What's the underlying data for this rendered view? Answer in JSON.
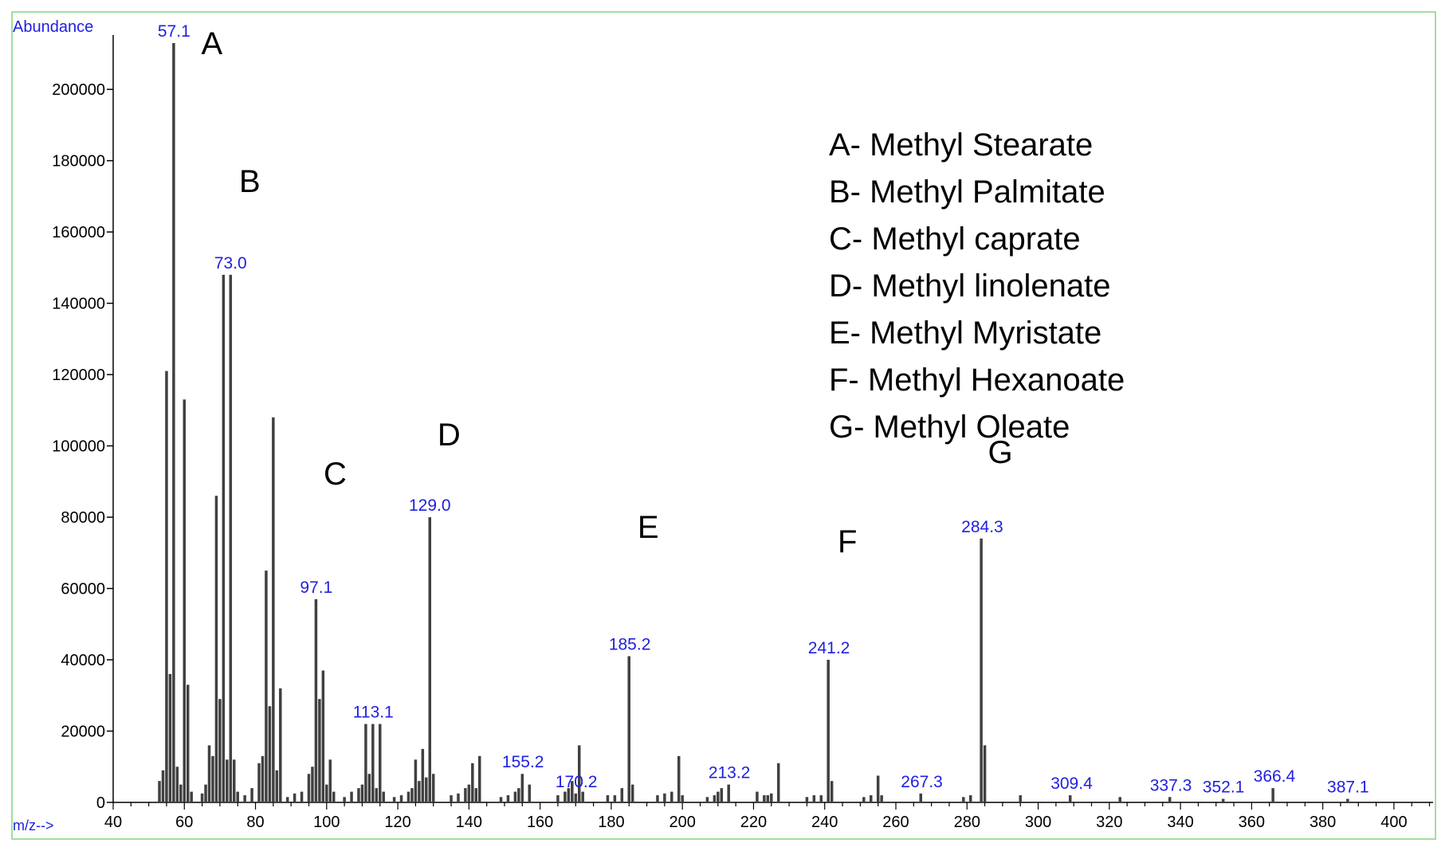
{
  "chart_data": {
    "type": "bar",
    "ylabel": "Abundance",
    "xlabel": "m/z-->",
    "xlim": [
      40,
      411
    ],
    "ylim": [
      0,
      213000
    ],
    "x_ticks": [
      40,
      60,
      80,
      100,
      120,
      140,
      160,
      180,
      200,
      220,
      240,
      260,
      280,
      300,
      320,
      340,
      360,
      380,
      400
    ],
    "y_ticks": [
      0,
      20000,
      40000,
      60000,
      80000,
      100000,
      120000,
      140000,
      160000,
      180000,
      200000
    ],
    "bar_color": "#404040",
    "peak_label_color": "#2020e0",
    "peaks": [
      [
        53,
        6000
      ],
      [
        54,
        9000
      ],
      [
        55,
        121000
      ],
      [
        56,
        36000
      ],
      [
        57,
        213000
      ],
      [
        58,
        10000
      ],
      [
        59,
        5000
      ],
      [
        60,
        113000
      ],
      [
        61,
        33000
      ],
      [
        62,
        3000
      ],
      [
        65,
        2500
      ],
      [
        66,
        5000
      ],
      [
        67,
        16000
      ],
      [
        68,
        13000
      ],
      [
        69,
        86000
      ],
      [
        70,
        29000
      ],
      [
        71,
        148000
      ],
      [
        72,
        12000
      ],
      [
        73,
        148000
      ],
      [
        74,
        12000
      ],
      [
        75,
        3000
      ],
      [
        77,
        2000
      ],
      [
        79,
        4000
      ],
      [
        81,
        11000
      ],
      [
        82,
        13000
      ],
      [
        83,
        65000
      ],
      [
        84,
        27000
      ],
      [
        85,
        108000
      ],
      [
        86,
        9000
      ],
      [
        87,
        32000
      ],
      [
        89,
        1500
      ],
      [
        91,
        2500
      ],
      [
        93,
        3000
      ],
      [
        95,
        8000
      ],
      [
        96,
        10000
      ],
      [
        97,
        57000
      ],
      [
        98,
        29000
      ],
      [
        99,
        37000
      ],
      [
        100,
        5000
      ],
      [
        101,
        12000
      ],
      [
        102,
        3000
      ],
      [
        105,
        1500
      ],
      [
        107,
        3000
      ],
      [
        109,
        4000
      ],
      [
        110,
        5000
      ],
      [
        111,
        22000
      ],
      [
        112,
        8000
      ],
      [
        113,
        22000
      ],
      [
        114,
        4000
      ],
      [
        115,
        22000
      ],
      [
        116,
        3000
      ],
      [
        119,
        1500
      ],
      [
        121,
        2000
      ],
      [
        123,
        3000
      ],
      [
        124,
        4000
      ],
      [
        125,
        12000
      ],
      [
        126,
        6000
      ],
      [
        127,
        15000
      ],
      [
        128,
        7000
      ],
      [
        129,
        80000
      ],
      [
        130,
        8000
      ],
      [
        135,
        2000
      ],
      [
        137,
        2500
      ],
      [
        139,
        4000
      ],
      [
        140,
        5000
      ],
      [
        141,
        11000
      ],
      [
        142,
        4000
      ],
      [
        143,
        13000
      ],
      [
        149,
        1500
      ],
      [
        151,
        2000
      ],
      [
        153,
        3000
      ],
      [
        154,
        4000
      ],
      [
        155,
        8000
      ],
      [
        157,
        5000
      ],
      [
        165,
        2000
      ],
      [
        167,
        3000
      ],
      [
        168,
        4000
      ],
      [
        169,
        6000
      ],
      [
        170,
        2500
      ],
      [
        171,
        16000
      ],
      [
        172,
        3000
      ],
      [
        179,
        2000
      ],
      [
        181,
        2000
      ],
      [
        183,
        4000
      ],
      [
        185,
        41000
      ],
      [
        186,
        5000
      ],
      [
        193,
        2000
      ],
      [
        195,
        2500
      ],
      [
        197,
        3000
      ],
      [
        199,
        13000
      ],
      [
        200,
        2000
      ],
      [
        207,
        1500
      ],
      [
        209,
        2000
      ],
      [
        210,
        3000
      ],
      [
        211,
        4000
      ],
      [
        213,
        5000
      ],
      [
        221,
        3000
      ],
      [
        223,
        2000
      ],
      [
        224,
        2000
      ],
      [
        225,
        2500
      ],
      [
        227,
        11000
      ],
      [
        235,
        1500
      ],
      [
        237,
        2000
      ],
      [
        239,
        2000
      ],
      [
        241,
        40000
      ],
      [
        242,
        6000
      ],
      [
        251,
        1500
      ],
      [
        253,
        2000
      ],
      [
        255,
        7500
      ],
      [
        256,
        2000
      ],
      [
        267,
        2500
      ],
      [
        279,
        1500
      ],
      [
        281,
        2000
      ],
      [
        284,
        74000
      ],
      [
        285,
        16000
      ],
      [
        295,
        2000
      ],
      [
        309,
        2000
      ],
      [
        323,
        1500
      ],
      [
        337,
        1500
      ],
      [
        352,
        1000
      ],
      [
        366,
        4000
      ],
      [
        387,
        1000
      ]
    ],
    "peak_labels": [
      {
        "text": "57.1",
        "x": 57.1,
        "y": 213000
      },
      {
        "text": "73.0",
        "x": 73.0,
        "y": 148000
      },
      {
        "text": "97.1",
        "x": 97.1,
        "y": 57000
      },
      {
        "text": "113.1",
        "x": 113.1,
        "y": 22000
      },
      {
        "text": "129.0",
        "x": 129.0,
        "y": 80000
      },
      {
        "text": "155.2",
        "x": 155.2,
        "y": 8000
      },
      {
        "text": "170.2",
        "x": 170.2,
        "y": 2500
      },
      {
        "text": "185.2",
        "x": 185.2,
        "y": 41000
      },
      {
        "text": "213.2",
        "x": 213.2,
        "y": 5000
      },
      {
        "text": "241.2",
        "x": 241.2,
        "y": 40000
      },
      {
        "text": "267.3",
        "x": 267.3,
        "y": 2500
      },
      {
        "text": "284.3",
        "x": 284.3,
        "y": 74000
      },
      {
        "text": "309.4",
        "x": 309.4,
        "y": 2000
      },
      {
        "text": "337.3",
        "x": 337.3,
        "y": 1500
      },
      {
        "text": "352.1",
        "x": 352.1,
        "y": 1000
      },
      {
        "text": "366.4",
        "x": 366.4,
        "y": 4000
      },
      {
        "text": "387.1",
        "x": 387.1,
        "y": 1000
      }
    ],
    "annotations": [
      {
        "text": "A",
        "x": 57,
        "y": 213000
      },
      {
        "text": "B",
        "x": 73,
        "y": 160000
      },
      {
        "text": "C",
        "x": 97,
        "y": 78000
      },
      {
        "text": "D",
        "x": 129,
        "y": 89000
      },
      {
        "text": "E",
        "x": 185,
        "y": 63000
      },
      {
        "text": "F",
        "x": 241,
        "y": 59000
      },
      {
        "text": "G",
        "x": 284,
        "y": 84000
      }
    ],
    "legend": [
      "A- Methyl Stearate",
      "B- Methyl Palmitate",
      "C- Methyl caprate",
      "D- Methyl linolenate",
      "E- Methyl Myristate",
      "F- Methyl Hexanoate",
      "G- Methyl Oleate"
    ]
  }
}
